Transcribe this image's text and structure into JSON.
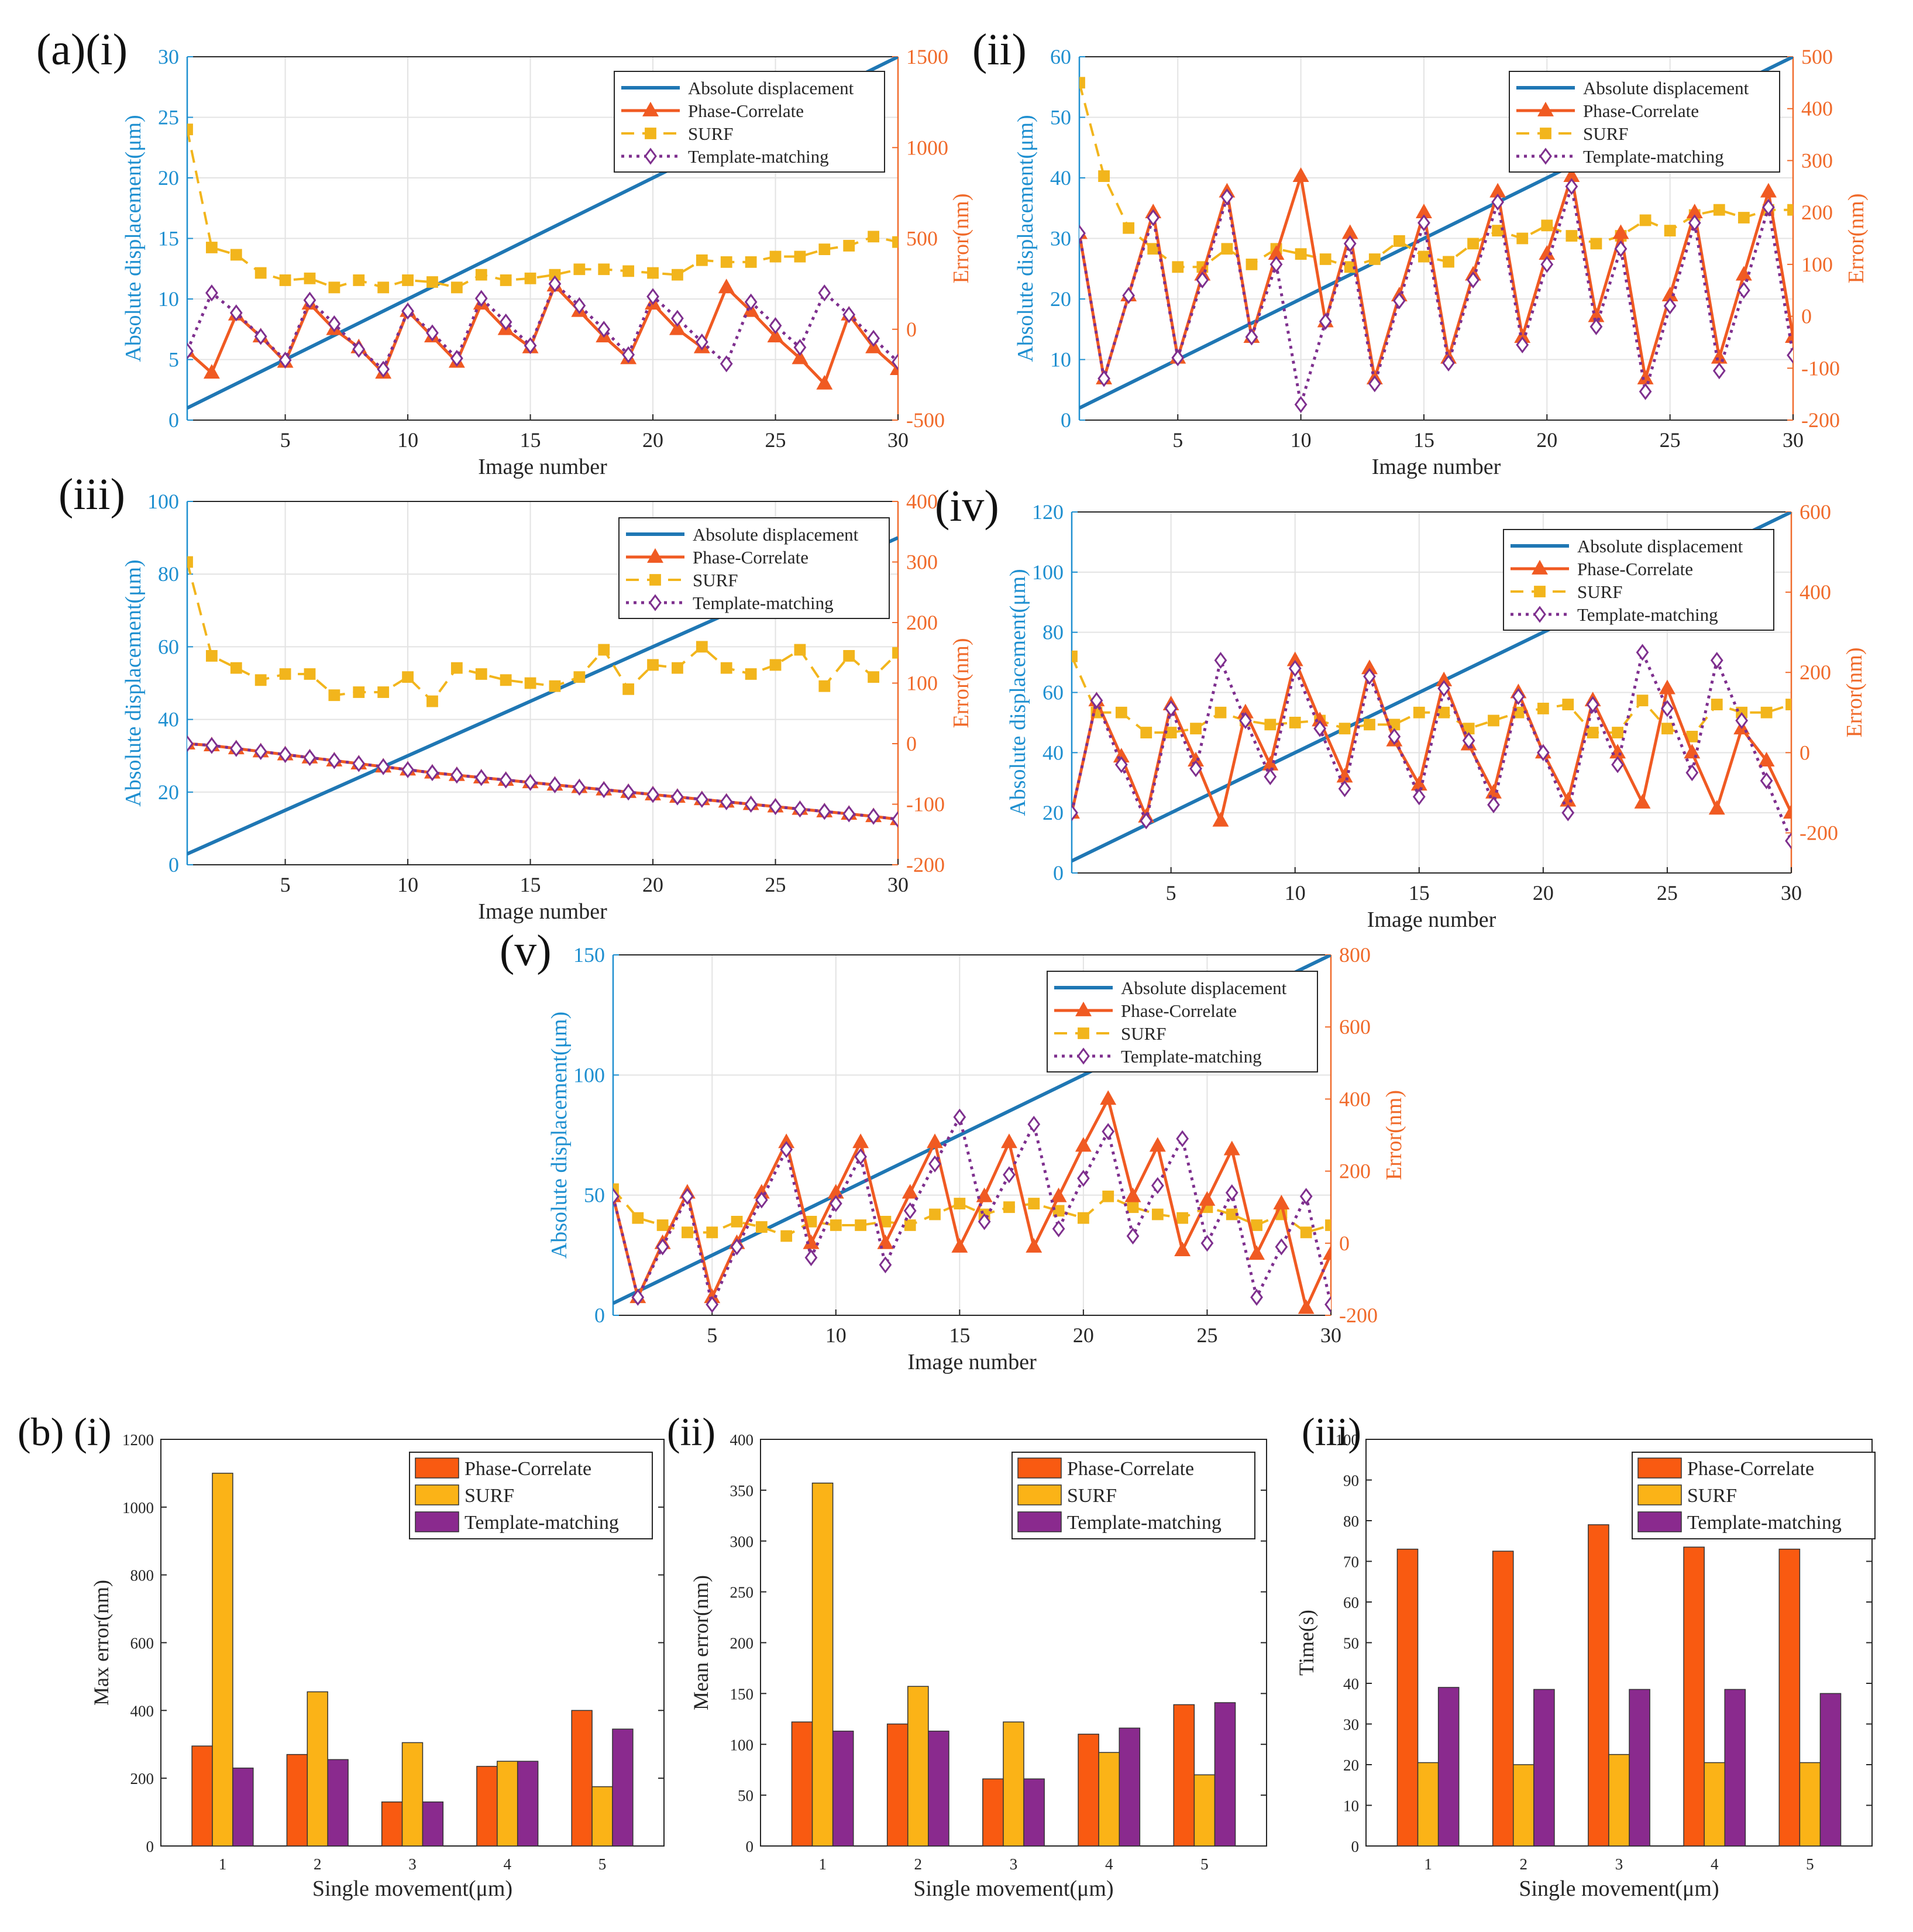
{
  "colors": {
    "abs": "#1F77B4",
    "abs_axis": "#1E8FD0",
    "phase": "#F05A22",
    "surf": "#F2B51C",
    "template": "#7E2F8E",
    "err_axis": "#F06A2A",
    "grid": "#E3E3E3",
    "bar_phase": "#F95A11",
    "bar_surf": "#FBB317",
    "bar_template": "#8A2A8E"
  },
  "chart_data": [
    {
      "id": "a-i",
      "type": "line",
      "panel_label": "(a)(i)",
      "xlabel": "Image number",
      "ylabel_left": "Absolute displacement(μm)",
      "ylabel_right": "Error(nm)",
      "xlim": [
        1,
        30
      ],
      "xticks": [
        "5",
        "10",
        "15",
        "20",
        "25",
        "30"
      ],
      "ylim_left": [
        0,
        30
      ],
      "yticks_left": [
        "0",
        "5",
        "10",
        "15",
        "20",
        "25",
        "30"
      ],
      "ylim_right": [
        -500,
        1500
      ],
      "yticks_right": [
        "-500",
        "0",
        "500",
        "1000",
        "1500"
      ],
      "legend": [
        "Absolute displacement",
        "Phase-Correlate",
        "SURF",
        "Template-matching"
      ],
      "absolute_displacement": {
        "start": 1,
        "step": 1
      },
      "series": [
        {
          "name": "Phase-Correlate",
          "values": [
            -120,
            -240,
            80,
            -40,
            -180,
            140,
            0,
            -100,
            -240,
            100,
            -40,
            -180,
            140,
            0,
            -100,
            240,
            100,
            -40,
            -160,
            140,
            0,
            -100,
            230,
            100,
            -40,
            -160,
            -300,
            80,
            -100,
            -220
          ]
        },
        {
          "name": "SURF",
          "values": [
            1100,
            450,
            410,
            310,
            270,
            280,
            230,
            270,
            230,
            270,
            260,
            230,
            300,
            270,
            280,
            300,
            330,
            330,
            320,
            310,
            300,
            380,
            370,
            370,
            400,
            400,
            440,
            460,
            510,
            480
          ]
        },
        {
          "name": "Template-matching",
          "values": [
            -120,
            200,
            90,
            -40,
            -170,
            160,
            30,
            -110,
            -220,
            100,
            -20,
            -160,
            170,
            40,
            -90,
            250,
            130,
            0,
            -140,
            180,
            60,
            -70,
            -190,
            150,
            20,
            -100,
            200,
            80,
            -50,
            -180
          ]
        }
      ]
    },
    {
      "id": "a-ii",
      "type": "line",
      "panel_label": "(ii)",
      "xlabel": "Image number",
      "ylabel_left": "Absolute displacement(μm)",
      "ylabel_right": "Error(nm)",
      "xlim": [
        1,
        30
      ],
      "xticks": [
        "5",
        "10",
        "15",
        "20",
        "25",
        "30"
      ],
      "ylim_left": [
        0,
        60
      ],
      "yticks_left": [
        "0",
        "10",
        "20",
        "30",
        "40",
        "50",
        "60"
      ],
      "ylim_right": [
        -200,
        500
      ],
      "yticks_right": [
        "-200",
        "-100",
        "0",
        "100",
        "200",
        "300",
        "400",
        "500"
      ],
      "legend": [
        "Absolute displacement",
        "Phase-Correlate",
        "SURF",
        "Template-matching"
      ],
      "absolute_displacement": {
        "start": 2,
        "step": 2
      },
      "series": [
        {
          "name": "Phase-Correlate",
          "values": [
            160,
            -120,
            40,
            200,
            -80,
            80,
            240,
            -40,
            120,
            270,
            -10,
            160,
            -120,
            40,
            200,
            -80,
            80,
            240,
            -40,
            120,
            270,
            0,
            160,
            -120,
            40,
            200,
            -80,
            80,
            240,
            -40
          ]
        },
        {
          "name": "SURF",
          "values": [
            450,
            270,
            170,
            130,
            95,
            95,
            130,
            100,
            130,
            120,
            110,
            95,
            110,
            145,
            115,
            105,
            140,
            165,
            150,
            175,
            155,
            140,
            155,
            185,
            165,
            195,
            205,
            190,
            205,
            205
          ]
        },
        {
          "name": "Template-matching",
          "values": [
            160,
            -120,
            40,
            190,
            -80,
            70,
            230,
            -40,
            100,
            -170,
            -10,
            140,
            -130,
            30,
            180,
            -90,
            70,
            220,
            -55,
            100,
            250,
            -20,
            130,
            -145,
            20,
            180,
            -105,
            50,
            210,
            -75
          ]
        }
      ]
    },
    {
      "id": "a-iii",
      "type": "line",
      "panel_label": "(iii)",
      "xlabel": "Image number",
      "ylabel_left": "Absolute displacement(μm)",
      "ylabel_right": "Error(nm)",
      "xlim": [
        1,
        30
      ],
      "xticks": [
        "5",
        "10",
        "15",
        "20",
        "25",
        "30"
      ],
      "ylim_left": [
        0,
        100
      ],
      "yticks_left": [
        "0",
        "20",
        "40",
        "60",
        "80",
        "100"
      ],
      "ylim_right": [
        -200,
        400
      ],
      "yticks_right": [
        "-200",
        "-100",
        "0",
        "100",
        "200",
        "300",
        "400"
      ],
      "legend": [
        "Absolute displacement",
        "Phase-Correlate",
        "SURF",
        "Template-matching"
      ],
      "absolute_displacement": {
        "start": 3,
        "step": 3
      },
      "series": [
        {
          "name": "Phase-Correlate",
          "values": [
            0,
            -3,
            -8,
            -13,
            -18,
            -23,
            -28,
            -33,
            -38,
            -43,
            -48,
            -52,
            -56,
            -60,
            -64,
            -68,
            -72,
            -76,
            -80,
            -84,
            -88,
            -92,
            -96,
            -100,
            -104,
            -108,
            -112,
            -116,
            -120,
            -125
          ]
        },
        {
          "name": "SURF",
          "values": [
            300,
            145,
            125,
            105,
            115,
            115,
            80,
            85,
            85,
            110,
            70,
            125,
            115,
            105,
            100,
            95,
            110,
            155,
            90,
            130,
            125,
            160,
            125,
            115,
            130,
            155,
            95,
            145,
            110,
            150
          ]
        },
        {
          "name": "Template-matching",
          "values": [
            0,
            -3,
            -8,
            -13,
            -18,
            -23,
            -28,
            -33,
            -38,
            -43,
            -48,
            -52,
            -56,
            -60,
            -64,
            -68,
            -72,
            -76,
            -80,
            -84,
            -88,
            -92,
            -96,
            -100,
            -104,
            -108,
            -112,
            -116,
            -120,
            -125
          ]
        }
      ]
    },
    {
      "id": "a-iv",
      "type": "line",
      "panel_label": "(iv)",
      "xlabel": "Image number",
      "ylabel_left": "Absolute displacement(μm)",
      "ylabel_right": "Error(nm)",
      "xlim": [
        1,
        30
      ],
      "xticks": [
        "5",
        "10",
        "15",
        "20",
        "25",
        "30"
      ],
      "ylim_left": [
        0,
        120
      ],
      "yticks_left": [
        "0",
        "20",
        "40",
        "60",
        "80",
        "100",
        "120"
      ],
      "ylim_right": [
        -300,
        600
      ],
      "yticks_right": [
        "-200",
        "0",
        "200",
        "400",
        "600"
      ],
      "legend": [
        "Absolute displacement",
        "Phase-Correlate",
        "SURF",
        "Template-matching"
      ],
      "absolute_displacement": {
        "start": 4,
        "step": 4
      },
      "series": [
        {
          "name": "Phase-Correlate",
          "values": [
            -150,
            130,
            -10,
            -160,
            120,
            -20,
            -170,
            100,
            -30,
            230,
            80,
            -60,
            210,
            30,
            -80,
            180,
            20,
            -100,
            150,
            0,
            -120,
            130,
            0,
            -125,
            160,
            0,
            -140,
            60,
            -20,
            -150
          ]
        },
        {
          "name": "SURF",
          "values": [
            240,
            100,
            100,
            50,
            50,
            60,
            100,
            80,
            70,
            75,
            80,
            60,
            70,
            70,
            100,
            100,
            60,
            80,
            100,
            110,
            120,
            50,
            50,
            130,
            60,
            40,
            120,
            100,
            100,
            120
          ]
        },
        {
          "name": "Template-matching",
          "values": [
            -150,
            130,
            -30,
            -170,
            110,
            -40,
            230,
            80,
            -60,
            210,
            60,
            -90,
            190,
            40,
            -110,
            160,
            30,
            -130,
            140,
            0,
            -150,
            120,
            -30,
            250,
            110,
            -50,
            230,
            80,
            -70,
            -220
          ]
        }
      ]
    },
    {
      "id": "a-v",
      "type": "line",
      "panel_label": "(v)",
      "xlabel": "Image number",
      "ylabel_left": "Absolute displacement(μm)",
      "ylabel_right": "Error(nm)",
      "xlim": [
        1,
        30
      ],
      "xticks": [
        "5",
        "10",
        "15",
        "20",
        "25",
        "30"
      ],
      "ylim_left": [
        0,
        150
      ],
      "yticks_left": [
        "0",
        "50",
        "100",
        "150"
      ],
      "ylim_right": [
        -200,
        800
      ],
      "yticks_right": [
        "-200",
        "0",
        "200",
        "400",
        "600",
        "800"
      ],
      "legend": [
        "Absolute displacement",
        "Phase-Correlate",
        "SURF",
        "Template-matching"
      ],
      "absolute_displacement": {
        "start": 5,
        "step": 5
      },
      "series": [
        {
          "name": "Phase-Correlate",
          "values": [
            130,
            -150,
            0,
            140,
            -150,
            0,
            140,
            280,
            0,
            140,
            280,
            0,
            140,
            280,
            -10,
            130,
            280,
            -10,
            130,
            270,
            400,
            130,
            270,
            -20,
            120,
            260,
            -30,
            110,
            -180,
            -30
          ]
        },
        {
          "name": "SURF",
          "values": [
            150,
            70,
            50,
            30,
            30,
            60,
            45,
            20,
            60,
            50,
            50,
            60,
            50,
            80,
            110,
            80,
            100,
            110,
            90,
            70,
            130,
            100,
            80,
            70,
            100,
            80,
            50,
            80,
            30,
            50
          ]
        },
        {
          "name": "Template-matching",
          "values": [
            130,
            -150,
            -10,
            130,
            -170,
            -10,
            120,
            260,
            -40,
            110,
            240,
            -60,
            90,
            220,
            350,
            60,
            190,
            330,
            40,
            180,
            310,
            20,
            160,
            290,
            0,
            140,
            -150,
            -10,
            130,
            -170
          ]
        }
      ]
    },
    {
      "id": "b-i",
      "type": "bar",
      "panel_label": "(b) (i)",
      "xlabel": "Single movement(μm)",
      "ylabel": "Max error(nm)",
      "categories": [
        "1",
        "2",
        "3",
        "4",
        "5"
      ],
      "ylim": [
        0,
        1200
      ],
      "yticks": [
        "0",
        "200",
        "400",
        "600",
        "800",
        "1000",
        "1200"
      ],
      "legend": [
        "Phase-Correlate",
        "SURF",
        "Template-matching"
      ],
      "series": [
        {
          "name": "Phase-Correlate",
          "values": [
            295,
            270,
            130,
            235,
            400
          ]
        },
        {
          "name": "SURF",
          "values": [
            1100,
            455,
            305,
            250,
            175
          ]
        },
        {
          "name": "Template-matching",
          "values": [
            230,
            255,
            130,
            250,
            345
          ]
        }
      ]
    },
    {
      "id": "b-ii",
      "type": "bar",
      "panel_label": "(ii)",
      "xlabel": "Single movement(μm)",
      "ylabel": "Mean error(nm)",
      "categories": [
        "1",
        "2",
        "3",
        "4",
        "5"
      ],
      "ylim": [
        0,
        400
      ],
      "yticks": [
        "0",
        "50",
        "100",
        "150",
        "200",
        "250",
        "300",
        "350",
        "400"
      ],
      "legend": [
        "Phase-Correlate",
        "SURF",
        "Template-matching"
      ],
      "series": [
        {
          "name": "Phase-Correlate",
          "values": [
            122,
            120,
            66,
            110,
            139
          ]
        },
        {
          "name": "SURF",
          "values": [
            357,
            157,
            122,
            92,
            70
          ]
        },
        {
          "name": "Template-matching",
          "values": [
            113,
            113,
            66,
            116,
            141
          ]
        }
      ]
    },
    {
      "id": "b-iii",
      "type": "bar",
      "panel_label": "(iii)",
      "xlabel": "Single movement(μm)",
      "ylabel": "Time(s)",
      "categories": [
        "1",
        "2",
        "3",
        "4",
        "5"
      ],
      "ylim": [
        0,
        100
      ],
      "yticks": [
        "0",
        "10",
        "20",
        "30",
        "40",
        "50",
        "60",
        "70",
        "80",
        "90",
        "100"
      ],
      "legend": [
        "Phase-Correlate",
        "SURF",
        "Template-matching"
      ],
      "series": [
        {
          "name": "Phase-Correlate",
          "values": [
            73,
            72.5,
            79,
            73.5,
            73
          ]
        },
        {
          "name": "SURF",
          "values": [
            20.5,
            20,
            22.5,
            20.5,
            20.5
          ]
        },
        {
          "name": "Template-matching",
          "values": [
            39,
            38.5,
            38.5,
            38.5,
            37.5
          ]
        }
      ]
    }
  ]
}
